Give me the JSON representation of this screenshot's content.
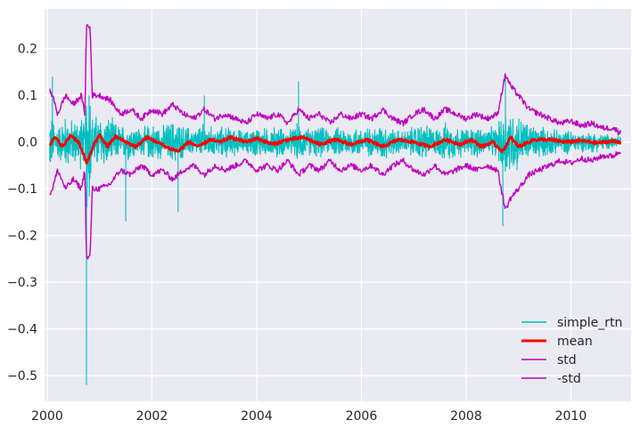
{
  "chart_data": {
    "type": "line",
    "title": "",
    "xlabel": "",
    "ylabel": "",
    "xlim": [
      1999.95,
      2011.15
    ],
    "ylim": [
      -0.555,
      0.285
    ],
    "grid": true,
    "legend_position": "lower-right",
    "x_ticks": [
      "2000",
      "2002",
      "2004",
      "2006",
      "2008",
      "2010"
    ],
    "y_ticks": [
      "0.2",
      "0.1",
      "0.0",
      "−0.1",
      "−0.2",
      "−0.3",
      "−0.4",
      "−0.5"
    ],
    "background_color": "#eaeaf2",
    "grid_color": "#ffffff",
    "series": [
      {
        "name": "simple_rtn",
        "color": "#00bfbf",
        "style": "noisy-band",
        "description_points": [
          {
            "x": 2000.05,
            "y": -0.04
          },
          {
            "x": 2000.1,
            "y": 0.14
          },
          {
            "x": 2000.75,
            "y": -0.52
          },
          {
            "x": 2000.8,
            "y": 0.1
          },
          {
            "x": 2001.5,
            "y": -0.17
          },
          {
            "x": 2002.5,
            "y": -0.15
          },
          {
            "x": 2003.0,
            "y": 0.1
          },
          {
            "x": 2004.8,
            "y": 0.13
          },
          {
            "x": 2008.7,
            "y": -0.18
          },
          {
            "x": 2008.75,
            "y": 0.14
          },
          {
            "x": 2010.9,
            "y": 0.03
          }
        ]
      },
      {
        "name": "mean",
        "color": "#ff0000",
        "points": [
          [
            2000.05,
            -0.005
          ],
          [
            2000.15,
            0.01
          ],
          [
            2000.3,
            -0.01
          ],
          [
            2000.45,
            0.015
          ],
          [
            2000.6,
            0.0
          ],
          [
            2000.75,
            -0.045
          ],
          [
            2000.9,
            -0.005
          ],
          [
            2001.0,
            0.015
          ],
          [
            2001.15,
            -0.01
          ],
          [
            2001.3,
            0.012
          ],
          [
            2001.5,
            0.0
          ],
          [
            2001.7,
            -0.01
          ],
          [
            2001.9,
            0.01
          ],
          [
            2002.1,
            0.0
          ],
          [
            2002.3,
            -0.012
          ],
          [
            2002.5,
            -0.02
          ],
          [
            2002.7,
            0.0
          ],
          [
            2002.9,
            -0.01
          ],
          [
            2003.1,
            0.005
          ],
          [
            2003.3,
            0.0
          ],
          [
            2003.5,
            0.01
          ],
          [
            2003.8,
            0.0
          ],
          [
            2004.0,
            0.008
          ],
          [
            2004.3,
            -0.005
          ],
          [
            2004.6,
            0.005
          ],
          [
            2004.9,
            0.01
          ],
          [
            2005.2,
            -0.005
          ],
          [
            2005.5,
            0.005
          ],
          [
            2005.8,
            -0.005
          ],
          [
            2006.1,
            0.005
          ],
          [
            2006.4,
            -0.01
          ],
          [
            2006.7,
            0.005
          ],
          [
            2007.0,
            0.0
          ],
          [
            2007.3,
            -0.01
          ],
          [
            2007.6,
            0.005
          ],
          [
            2007.9,
            -0.005
          ],
          [
            2008.1,
            0.005
          ],
          [
            2008.3,
            -0.01
          ],
          [
            2008.5,
            0.0
          ],
          [
            2008.7,
            -0.02
          ],
          [
            2008.85,
            0.01
          ],
          [
            2009.0,
            -0.01
          ],
          [
            2009.3,
            0.005
          ],
          [
            2009.6,
            0.005
          ],
          [
            2009.9,
            0.0
          ],
          [
            2010.2,
            0.003
          ],
          [
            2010.5,
            -0.002
          ],
          [
            2010.8,
            0.002
          ],
          [
            2010.95,
            0.0
          ]
        ]
      },
      {
        "name": "std",
        "color": "#bf00bf",
        "points": [
          [
            2000.05,
            0.11
          ],
          [
            2000.1,
            0.1
          ],
          [
            2000.2,
            0.06
          ],
          [
            2000.35,
            0.1
          ],
          [
            2000.5,
            0.08
          ],
          [
            2000.65,
            0.1
          ],
          [
            2000.72,
            0.06
          ],
          [
            2000.75,
            0.25
          ],
          [
            2000.82,
            0.245
          ],
          [
            2000.86,
            0.1
          ],
          [
            2001.0,
            0.1
          ],
          [
            2001.2,
            0.09
          ],
          [
            2001.4,
            0.06
          ],
          [
            2001.6,
            0.07
          ],
          [
            2001.8,
            0.05
          ],
          [
            2002.0,
            0.07
          ],
          [
            2002.2,
            0.06
          ],
          [
            2002.4,
            0.08
          ],
          [
            2002.6,
            0.06
          ],
          [
            2002.8,
            0.05
          ],
          [
            2003.0,
            0.07
          ],
          [
            2003.2,
            0.05
          ],
          [
            2003.4,
            0.06
          ],
          [
            2003.6,
            0.05
          ],
          [
            2003.8,
            0.04
          ],
          [
            2004.0,
            0.06
          ],
          [
            2004.2,
            0.05
          ],
          [
            2004.4,
            0.06
          ],
          [
            2004.6,
            0.04
          ],
          [
            2004.8,
            0.07
          ],
          [
            2005.0,
            0.05
          ],
          [
            2005.2,
            0.06
          ],
          [
            2005.4,
            0.04
          ],
          [
            2005.6,
            0.06
          ],
          [
            2005.8,
            0.05
          ],
          [
            2006.0,
            0.06
          ],
          [
            2006.2,
            0.05
          ],
          [
            2006.4,
            0.07
          ],
          [
            2006.6,
            0.05
          ],
          [
            2006.8,
            0.04
          ],
          [
            2007.0,
            0.06
          ],
          [
            2007.2,
            0.07
          ],
          [
            2007.4,
            0.05
          ],
          [
            2007.6,
            0.07
          ],
          [
            2007.8,
            0.06
          ],
          [
            2008.0,
            0.05
          ],
          [
            2008.2,
            0.06
          ],
          [
            2008.4,
            0.05
          ],
          [
            2008.6,
            0.06
          ],
          [
            2008.75,
            0.145
          ],
          [
            2008.85,
            0.12
          ],
          [
            2009.0,
            0.1
          ],
          [
            2009.2,
            0.07
          ],
          [
            2009.4,
            0.06
          ],
          [
            2009.6,
            0.05
          ],
          [
            2009.8,
            0.04
          ],
          [
            2010.0,
            0.045
          ],
          [
            2010.2,
            0.035
          ],
          [
            2010.4,
            0.04
          ],
          [
            2010.6,
            0.03
          ],
          [
            2010.8,
            0.03
          ],
          [
            2010.95,
            0.02
          ]
        ]
      },
      {
        "name": "-std",
        "color": "#bf00bf",
        "points": [
          [
            2000.05,
            -0.11
          ],
          [
            2000.1,
            -0.1
          ],
          [
            2000.2,
            -0.06
          ],
          [
            2000.35,
            -0.1
          ],
          [
            2000.5,
            -0.08
          ],
          [
            2000.65,
            -0.1
          ],
          [
            2000.72,
            -0.06
          ],
          [
            2000.75,
            -0.25
          ],
          [
            2000.82,
            -0.245
          ],
          [
            2000.86,
            -0.1
          ],
          [
            2001.0,
            -0.1
          ],
          [
            2001.2,
            -0.09
          ],
          [
            2001.4,
            -0.06
          ],
          [
            2001.6,
            -0.07
          ],
          [
            2001.8,
            -0.05
          ],
          [
            2002.0,
            -0.07
          ],
          [
            2002.2,
            -0.06
          ],
          [
            2002.4,
            -0.08
          ],
          [
            2002.6,
            -0.06
          ],
          [
            2002.8,
            -0.05
          ],
          [
            2003.0,
            -0.07
          ],
          [
            2003.2,
            -0.05
          ],
          [
            2003.4,
            -0.06
          ],
          [
            2003.6,
            -0.05
          ],
          [
            2003.8,
            -0.04
          ],
          [
            2004.0,
            -0.06
          ],
          [
            2004.2,
            -0.05
          ],
          [
            2004.4,
            -0.06
          ],
          [
            2004.6,
            -0.04
          ],
          [
            2004.8,
            -0.07
          ],
          [
            2005.0,
            -0.05
          ],
          [
            2005.2,
            -0.06
          ],
          [
            2005.4,
            -0.04
          ],
          [
            2005.6,
            -0.06
          ],
          [
            2005.8,
            -0.05
          ],
          [
            2006.0,
            -0.06
          ],
          [
            2006.2,
            -0.05
          ],
          [
            2006.4,
            -0.07
          ],
          [
            2006.6,
            -0.05
          ],
          [
            2006.8,
            -0.04
          ],
          [
            2007.0,
            -0.06
          ],
          [
            2007.2,
            -0.07
          ],
          [
            2007.4,
            -0.05
          ],
          [
            2007.6,
            -0.07
          ],
          [
            2007.8,
            -0.06
          ],
          [
            2008.0,
            -0.05
          ],
          [
            2008.2,
            -0.06
          ],
          [
            2008.4,
            -0.05
          ],
          [
            2008.6,
            -0.06
          ],
          [
            2008.75,
            -0.145
          ],
          [
            2008.85,
            -0.12
          ],
          [
            2009.0,
            -0.1
          ],
          [
            2009.2,
            -0.07
          ],
          [
            2009.4,
            -0.06
          ],
          [
            2009.6,
            -0.05
          ],
          [
            2009.8,
            -0.04
          ],
          [
            2010.0,
            -0.045
          ],
          [
            2010.2,
            -0.035
          ],
          [
            2010.4,
            -0.04
          ],
          [
            2010.6,
            -0.03
          ],
          [
            2010.8,
            -0.03
          ],
          [
            2010.95,
            -0.02
          ]
        ]
      }
    ]
  },
  "legend": {
    "items": [
      {
        "label": "simple_rtn",
        "color": "#00bfbf",
        "width": 1.5
      },
      {
        "label": "mean",
        "color": "#ff0000",
        "width": 3
      },
      {
        "label": "std",
        "color": "#bf00bf",
        "width": 1.5
      },
      {
        "label": "-std",
        "color": "#bf00bf",
        "width": 1.5
      }
    ]
  }
}
